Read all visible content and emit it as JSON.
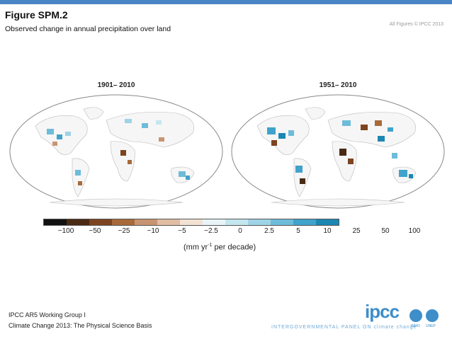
{
  "header": {
    "title": "Figure SPM.2",
    "subtitle": "Observed change in annual precipitation over land",
    "copyright": "All Figures © IPCC 2013"
  },
  "maps": [
    {
      "label": "1901– 2010"
    },
    {
      "label": "1951– 2010"
    }
  ],
  "legend": {
    "colors": [
      "#111111",
      "#4a2a12",
      "#7d4420",
      "#a86a3a",
      "#c89572",
      "#e0bda3",
      "#f3e1d4",
      "#e8f4f8",
      "#c4e6ef",
      "#9fd3e6",
      "#6dbcd9",
      "#3fa3cb",
      "#1c87b3"
    ],
    "ticks": [
      "−100",
      "−50",
      "−25",
      "−10",
      "−5",
      "−2.5",
      "0",
      "2.5",
      "5",
      "10",
      "25",
      "50",
      "100"
    ],
    "unit_prefix": "(mm yr",
    "unit_sup": "-1",
    "unit_suffix": " per decade)"
  },
  "footer": {
    "line1": "IPCC AR5 Working Group I",
    "line2": "Climate Change 2013: The Physical Science Basis",
    "logo": "ipcc",
    "panel_text": "INTERGOVERNMENTAL PANEL ON climate change",
    "emblem_wmo": "WMO",
    "emblem_unep": "UNEP"
  }
}
